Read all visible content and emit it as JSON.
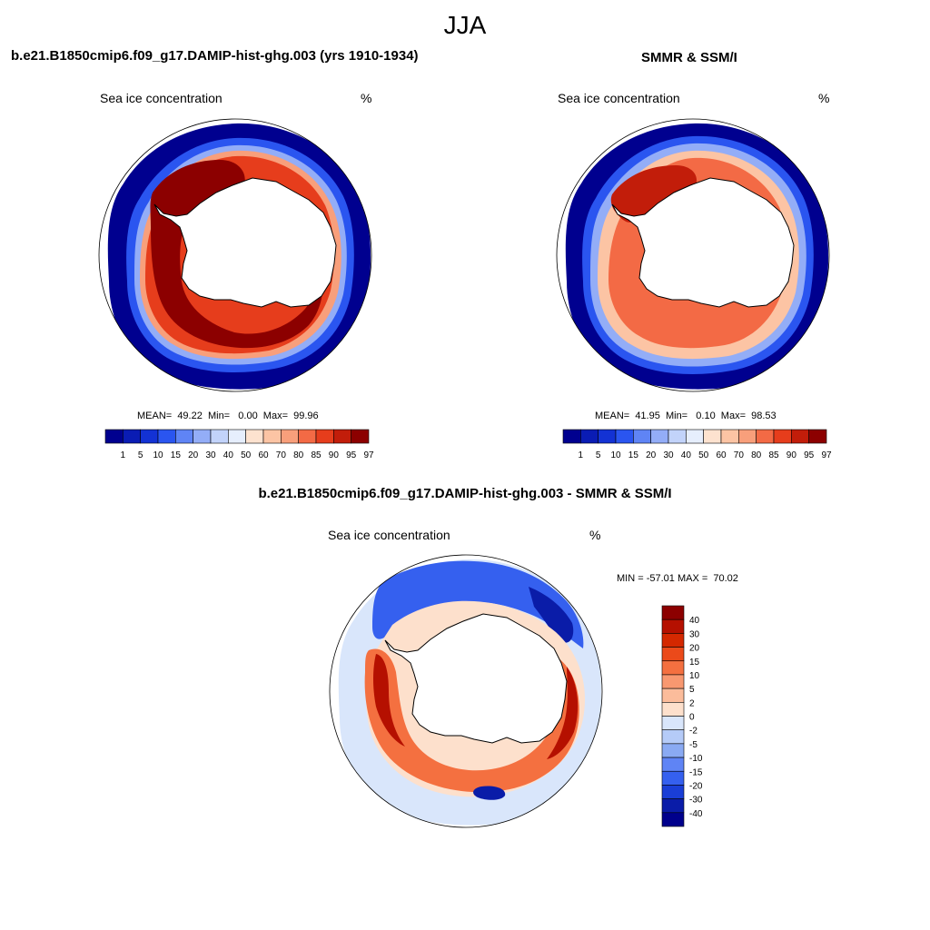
{
  "title": "JJA",
  "panels": [
    {
      "id": "model",
      "header": "b.e21.B1850cmip6.f09_g17.DAMIP-hist-ghg.003 (yrs 1910-1934)",
      "variable": "Sea ice concentration",
      "units": "%",
      "stats": "MEAN=  49.22  Min=   0.00  Max=  99.96"
    },
    {
      "id": "obs",
      "header": "SMMR & SSM/I",
      "variable": "Sea ice concentration",
      "units": "%",
      "stats": "MEAN=  41.95  Min=   0.10  Max=  98.53"
    },
    {
      "id": "diff",
      "header": "b.e21.B1850cmip6.f09_g17.DAMIP-hist-ghg.003 - SMMR & SSM/I",
      "variable": "Sea ice concentration",
      "units": "%",
      "stats": "MIN = -57.01 MAX =  70.02"
    }
  ],
  "colorbars": {
    "concentration": {
      "labels": [
        "1",
        "5",
        "10",
        "15",
        "20",
        "30",
        "40",
        "50",
        "60",
        "70",
        "80",
        "85",
        "90",
        "95",
        "97"
      ],
      "colors": [
        "#00008f",
        "#0a1cb4",
        "#1332d4",
        "#2a55f0",
        "#5f84f5",
        "#93adf7",
        "#c2d3fa",
        "#e6eefd",
        "#fde2cf",
        "#fcc4a4",
        "#f89f7b",
        "#f36a45",
        "#e63d1c",
        "#c21d0a",
        "#8c0000"
      ]
    },
    "difference": {
      "labels": [
        "40",
        "30",
        "20",
        "15",
        "10",
        "5",
        "2",
        "0",
        "-2",
        "-5",
        "-10",
        "-15",
        "-20",
        "-30",
        "-40"
      ],
      "colors": [
        "#8c0000",
        "#b51000",
        "#d42800",
        "#eb4a1a",
        "#f47040",
        "#f89870",
        "#fbbc9b",
        "#fde0cc",
        "#d9e6fb",
        "#b5cbf8",
        "#8aaaf3",
        "#5f84f5",
        "#3560ef",
        "#1a3ed6",
        "#0a1ca8",
        "#00008c"
      ]
    }
  }
}
